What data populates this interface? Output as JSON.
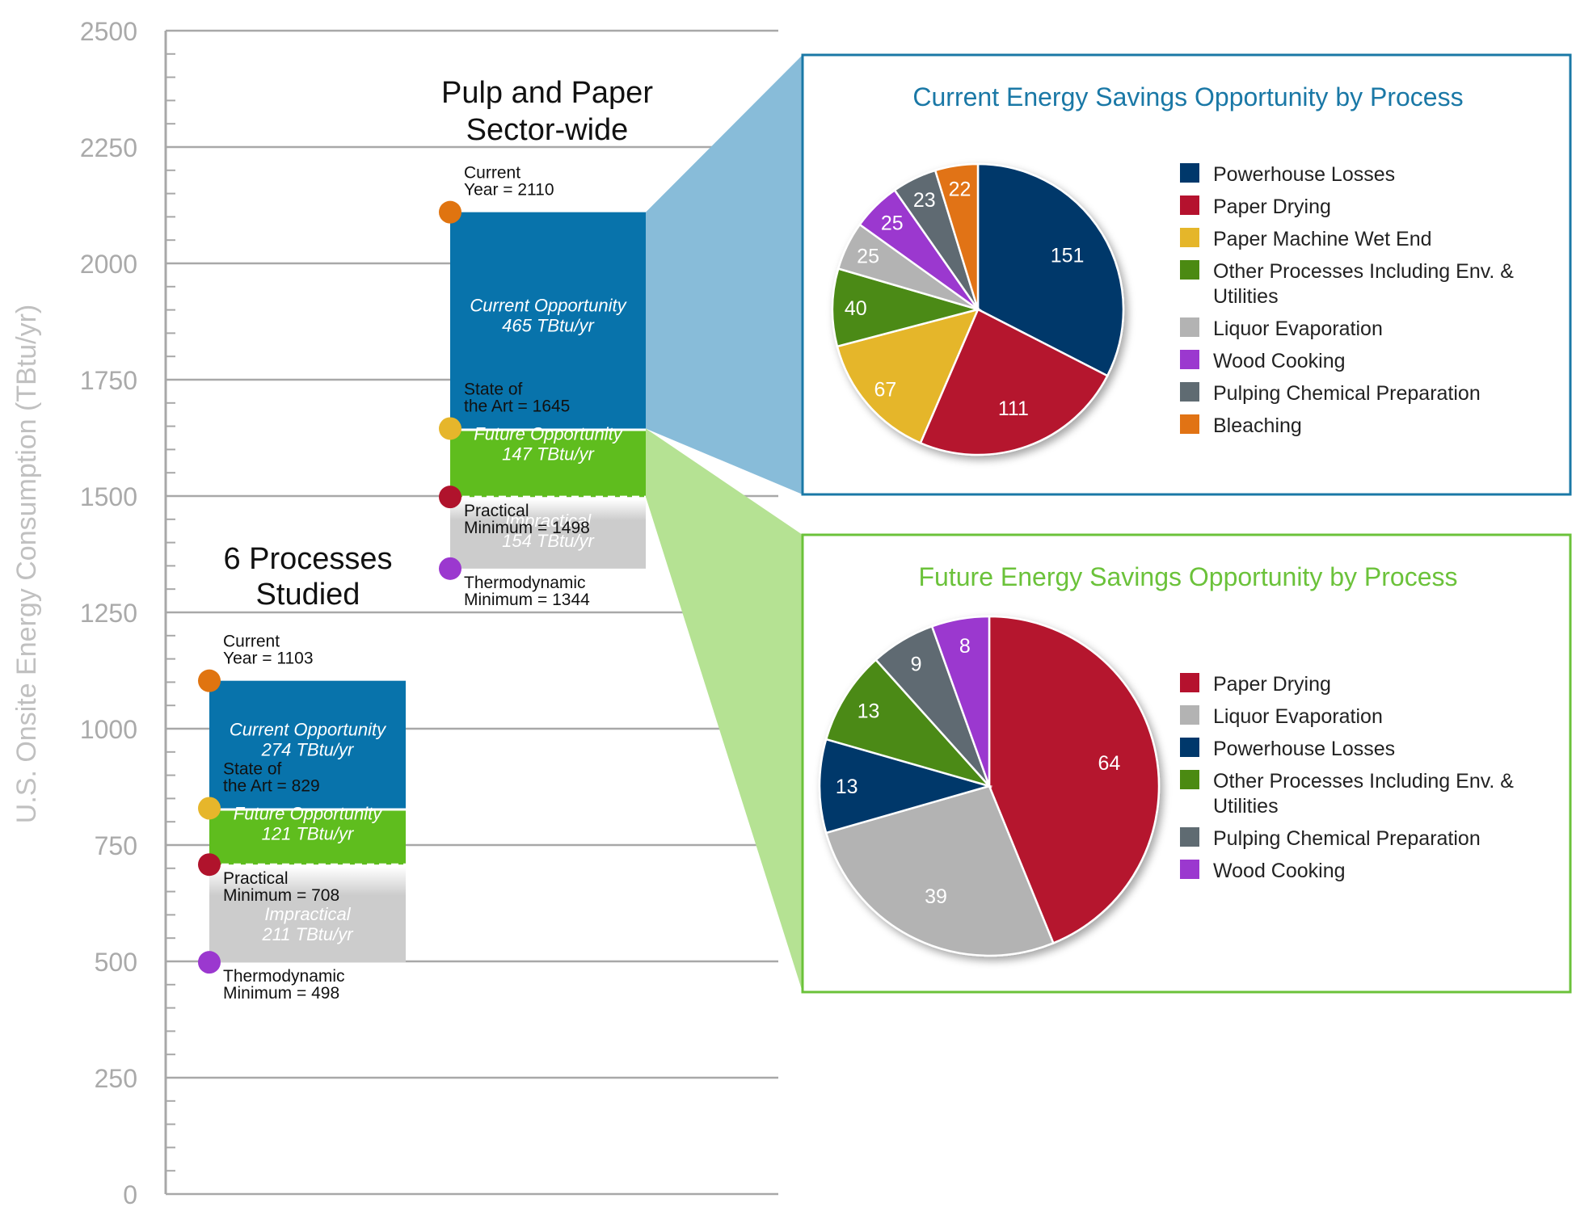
{
  "colors": {
    "current_opportunity": "#0873ab",
    "future_opportunity": "#5fbd1e",
    "impractical": "#cccccc",
    "dot_current": "#e07410",
    "dot_state_of_art": "#e6b62b",
    "dot_practical": "#b0132c",
    "dot_thermo": "#9b38cf",
    "current_panel": "#1a78a6",
    "future_panel": "#6bc23a"
  },
  "chart_data": [
    {
      "type": "bar",
      "subtype": "floating-stacked",
      "ylabel": "U.S. Onsite Energy Consumption (TBtu/yr)",
      "ylim": [
        0,
        2500
      ],
      "yticks": [
        0,
        250,
        500,
        750,
        1000,
        1250,
        1500,
        1750,
        2000,
        2250,
        2500
      ],
      "grid": true,
      "groups": [
        {
          "title_lines": [
            "6 Processes",
            "Studied"
          ],
          "current_year": 1103,
          "state_of_art": 829,
          "practical_minimum": 708,
          "thermodynamic_minimum": 498,
          "segments": [
            {
              "name_lines": [
                "Current Opportunity",
                "274 TBtu/yr"
              ],
              "from": 829,
              "to": 1103,
              "color_key": "current_opportunity"
            },
            {
              "name_lines": [
                "Future Opportunity",
                "121 TBtu/yr"
              ],
              "from": 708,
              "to": 829,
              "color_key": "future_opportunity"
            },
            {
              "name_lines": [
                "Impractical",
                "211 TBtu/yr"
              ],
              "from": 498,
              "to": 708,
              "color_key": "impractical"
            }
          ],
          "markers": [
            {
              "lines": [
                "Current",
                "Year = 1103"
              ],
              "value": 1103,
              "color_key": "dot_current"
            },
            {
              "lines": [
                "State of",
                "the Art = 829"
              ],
              "value": 829,
              "color_key": "dot_state_of_art"
            },
            {
              "lines": [
                "Practical",
                "Minimum = 708"
              ],
              "value": 708,
              "color_key": "dot_practical"
            },
            {
              "lines": [
                "Thermodynamic",
                "Minimum = 498"
              ],
              "value": 498,
              "color_key": "dot_thermo"
            }
          ]
        },
        {
          "title_lines": [
            "Pulp and Paper",
            "Sector-wide"
          ],
          "current_year": 2110,
          "state_of_art": 1645,
          "practical_minimum": 1498,
          "thermodynamic_minimum": 1344,
          "segments": [
            {
              "name_lines": [
                "Current Opportunity",
                "465 TBtu/yr"
              ],
              "from": 1645,
              "to": 2110,
              "color_key": "current_opportunity"
            },
            {
              "name_lines": [
                "Future Opportunity",
                "147 TBtu/yr"
              ],
              "from": 1498,
              "to": 1645,
              "color_key": "future_opportunity"
            },
            {
              "name_lines": [
                "Impractical",
                "154 TBtu/yr"
              ],
              "from": 1344,
              "to": 1498,
              "color_key": "impractical"
            }
          ],
          "markers": [
            {
              "lines": [
                "Current",
                "Year = 2110"
              ],
              "value": 2110,
              "color_key": "dot_current"
            },
            {
              "lines": [
                "State of",
                "the Art = 1645"
              ],
              "value": 1645,
              "color_key": "dot_state_of_art"
            },
            {
              "lines": [
                "Practical",
                "Minimum = 1498"
              ],
              "value": 1498,
              "color_key": "dot_practical"
            },
            {
              "lines": [
                "Thermodynamic",
                "Minimum = 1344"
              ],
              "value": 1344,
              "color_key": "dot_thermo"
            }
          ]
        }
      ]
    },
    {
      "type": "pie",
      "title": "Current Energy Savings Opportunity by Process",
      "legend_position": "right",
      "slices": [
        {
          "label": "Powerhouse Losses",
          "value": 151,
          "color": "#00386b"
        },
        {
          "label": "Paper Drying",
          "value": 111,
          "color": "#b5122e"
        },
        {
          "label": "Paper Machine Wet End",
          "value": 67,
          "color": "#e5b62a"
        },
        {
          "label": "Other Processes Including Env. & Utilities",
          "value": 40,
          "color": "#4b8a12"
        },
        {
          "label": "Liquor Evaporation",
          "value": 25,
          "color": "#b3b3b3"
        },
        {
          "label": "Wood Cooking",
          "value": 25,
          "color": "#9b38cf"
        },
        {
          "label": "Pulping Chemical Preparation",
          "value": 23,
          "color": "#5f6b72"
        },
        {
          "label": "Bleaching",
          "value": 22,
          "color": "#e17314"
        }
      ]
    },
    {
      "type": "pie",
      "title": "Future Energy Savings Opportunity by Process",
      "legend_position": "right",
      "slices": [
        {
          "label": "Paper Drying",
          "value": 64,
          "color": "#b5122e"
        },
        {
          "label": "Liquor Evaporation",
          "value": 39,
          "color": "#b3b3b3"
        },
        {
          "label": "Powerhouse Losses",
          "value": 13,
          "color": "#00386b"
        },
        {
          "label": "Other Processes Including Env. & Utilities",
          "value": 13,
          "color": "#4b8a12"
        },
        {
          "label": "Pulping Chemical Preparation",
          "value": 9,
          "color": "#5f6b72"
        },
        {
          "label": "Wood Cooking",
          "value": 8,
          "color": "#9b38cf"
        }
      ]
    }
  ]
}
